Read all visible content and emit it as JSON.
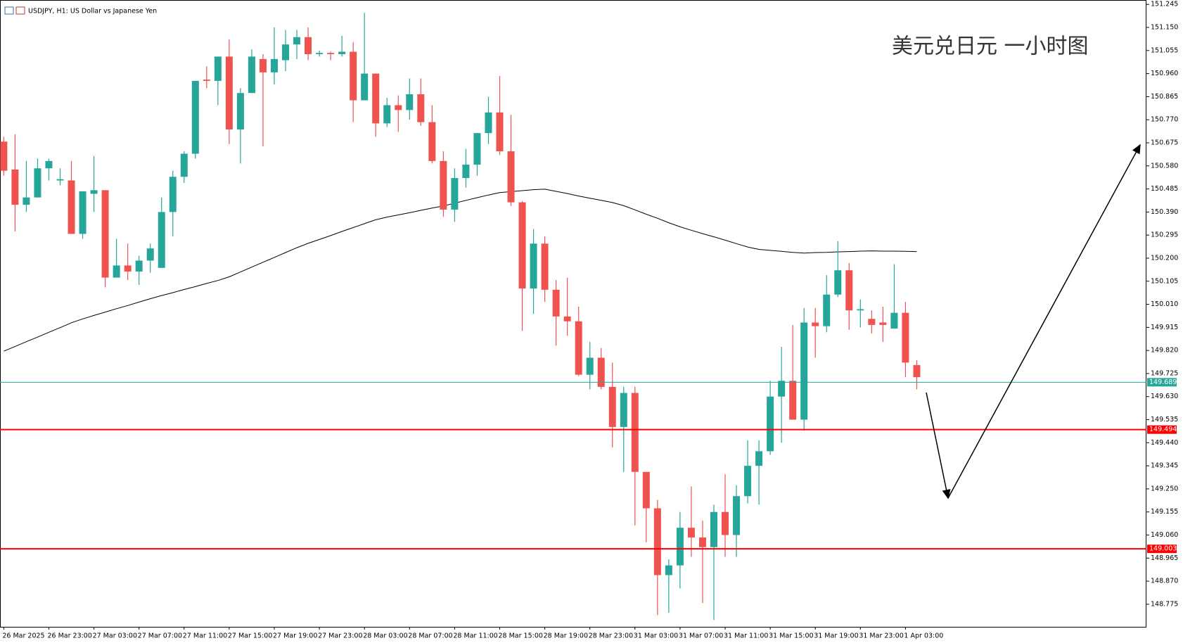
{
  "chart_data": {
    "type": "candlestick",
    "title": "USDJPY, H1:  US Dollar vs Japanese Yen",
    "annotation": "美元兑日元 一小时图",
    "categories": [
      "26 Mar 2025",
      null,
      null,
      null,
      "26 Mar 23:00",
      null,
      null,
      null,
      "27 Mar 03:00",
      null,
      null,
      null,
      "27 Mar 07:00",
      null,
      null,
      null,
      "27 Mar 11:00",
      null,
      null,
      null,
      "27 Mar 15:00",
      null,
      null,
      null,
      "27 Mar 19:00",
      null,
      null,
      null,
      "27 Mar 23:00",
      null,
      null,
      null,
      "28 Mar 03:00",
      null,
      null,
      null,
      "28 Mar 07:00",
      null,
      null,
      null,
      "28 Mar 11:00",
      null,
      null,
      null,
      "28 Mar 15:00",
      null,
      null,
      null,
      "28 Mar 19:00",
      null,
      null,
      null,
      "28 Mar 23:00",
      null,
      null,
      null,
      "31 Mar 03:00",
      null,
      null,
      null,
      "31 Mar 07:00",
      null,
      null,
      null,
      "31 Mar 11:00",
      null,
      null,
      null,
      "31 Mar 15:00",
      null,
      null,
      null,
      "31 Mar 19:00",
      null,
      null,
      null,
      "31 Mar 23:00",
      null,
      null,
      null,
      "1 Apr 03:00",
      null
    ],
    "open": [
      150.68,
      150.565,
      150.42,
      150.45,
      150.57,
      150.52,
      150.52,
      150.3,
      150.465,
      150.48,
      150.12,
      150.17,
      150.145,
      150.19,
      150.16,
      150.39,
      150.535,
      150.63,
      150.935,
      150.93,
      151.03,
      150.73,
      150.88,
      151.02,
      150.965,
      151.015,
      151.08,
      151.11,
      151.04,
      151.045,
      151.04,
      151.05,
      150.85,
      150.96,
      150.755,
      150.83,
      150.81,
      150.875,
      150.76,
      150.6,
      150.4,
      150.53,
      150.585,
      150.715,
      150.8,
      150.64,
      150.43,
      150.075,
      150.26,
      150.07,
      149.96,
      149.94,
      149.72,
      149.79,
      149.67,
      149.505,
      149.645,
      149.32,
      149.17,
      148.895,
      148.935,
      149.09,
      149.05,
      149.01,
      149.155,
      149.06,
      149.22,
      149.345,
      149.405,
      149.63,
      149.695,
      149.535,
      149.935,
      149.92,
      150.05,
      150.15,
      149.985,
      149.95,
      149.935,
      149.91,
      149.975,
      149.76
    ],
    "high": [
      150.7,
      150.71,
      150.6,
      150.61,
      150.61,
      150.57,
      150.6,
      150.475,
      150.62,
      150.48,
      150.28,
      150.26,
      150.21,
      150.26,
      150.45,
      150.56,
      150.64,
      150.93,
      150.99,
      151.03,
      151.1,
      150.9,
      151.06,
      151.04,
      151.15,
      151.14,
      151.14,
      151.15,
      151.055,
      151.05,
      151.115,
      151.09,
      151.21,
      150.96,
      150.86,
      150.87,
      150.94,
      150.94,
      150.83,
      150.64,
      150.57,
      150.65,
      150.715,
      150.865,
      150.95,
      150.79,
      150.435,
      150.32,
      150.29,
      150.11,
      150.12,
      150.0,
      149.855,
      149.83,
      149.77,
      149.67,
      149.67,
      149.32,
      149.205,
      148.96,
      149.155,
      149.26,
      149.12,
      149.185,
      149.31,
      149.265,
      149.45,
      149.45,
      149.695,
      149.835,
      149.925,
      149.995,
      149.995,
      150.13,
      150.27,
      150.18,
      150.03,
      149.985,
      150.0,
      150.175,
      150.02,
      149.78
    ],
    "low": [
      150.54,
      150.31,
      150.39,
      150.45,
      150.52,
      150.5,
      150.3,
      150.28,
      150.39,
      150.08,
      150.12,
      150.11,
      150.09,
      150.14,
      150.16,
      150.29,
      150.51,
      150.61,
      150.9,
      150.83,
      150.67,
      150.59,
      150.88,
      150.66,
      150.915,
      150.97,
      151.02,
      151.015,
      151.03,
      151.015,
      151.03,
      150.76,
      150.85,
      150.7,
      150.74,
      150.72,
      150.77,
      150.745,
      150.59,
      150.37,
      150.35,
      150.49,
      150.54,
      150.67,
      150.625,
      150.415,
      149.9,
      149.97,
      150.02,
      149.84,
      149.88,
      149.715,
      149.66,
      149.66,
      149.42,
      149.32,
      149.1,
      149.03,
      148.73,
      148.74,
      148.84,
      148.97,
      148.78,
      148.71,
      148.97,
      148.97,
      149.19,
      149.185,
      149.39,
      149.44,
      149.535,
      149.49,
      149.79,
      149.895,
      150.04,
      149.905,
      149.915,
      149.89,
      149.855,
      149.91,
      149.71,
      149.66
    ],
    "close": [
      150.56,
      150.42,
      150.45,
      150.57,
      150.6,
      150.525,
      150.3,
      150.475,
      150.48,
      150.12,
      150.17,
      150.145,
      150.19,
      150.24,
      150.39,
      150.535,
      150.63,
      150.93,
      150.93,
      151.03,
      150.73,
      150.88,
      151.03,
      150.965,
      151.02,
      151.08,
      151.11,
      151.04,
      151.045,
      151.04,
      151.05,
      150.85,
      150.96,
      150.755,
      150.83,
      150.81,
      150.875,
      150.76,
      150.6,
      150.4,
      150.53,
      150.585,
      150.715,
      150.8,
      150.64,
      150.43,
      150.075,
      150.26,
      150.07,
      149.96,
      149.94,
      149.72,
      149.79,
      149.67,
      149.505,
      149.645,
      149.32,
      149.17,
      148.895,
      148.935,
      149.09,
      149.05,
      149.01,
      149.155,
      149.06,
      149.22,
      149.345,
      149.405,
      149.63,
      149.695,
      149.535,
      149.935,
      149.92,
      150.05,
      150.15,
      149.985,
      149.99,
      149.925,
      149.925,
      149.975,
      149.77,
      149.71
    ],
    "up_color": "#26a69a",
    "down_color": "#ef5350",
    "moving_average": {
      "color": "#000000",
      "values": [
        149.817,
        149.836,
        149.856,
        149.875,
        149.895,
        149.914,
        149.934,
        149.95,
        149.964,
        149.978,
        149.992,
        150.005,
        150.019,
        150.033,
        150.046,
        150.058,
        150.071,
        150.083,
        150.096,
        150.108,
        150.123,
        150.143,
        150.163,
        150.183,
        150.203,
        150.223,
        150.243,
        150.261,
        150.277,
        150.293,
        150.31,
        150.326,
        150.342,
        150.358,
        150.369,
        150.378,
        150.387,
        150.397,
        150.406,
        150.415,
        150.426,
        150.438,
        150.449,
        150.46,
        150.47,
        150.474,
        150.478,
        150.482,
        150.484,
        150.475,
        150.466,
        150.456,
        150.447,
        150.438,
        150.429,
        150.416,
        150.399,
        150.381,
        150.364,
        150.346,
        150.329,
        150.315,
        150.301,
        150.288,
        150.274,
        150.26,
        150.246,
        150.236,
        150.232,
        150.228,
        150.224,
        150.221,
        150.223,
        150.224,
        150.226,
        150.227,
        150.229,
        150.23,
        150.229,
        150.229,
        150.228,
        150.227
      ]
    },
    "price_lines": [
      {
        "value": 149.689,
        "color": "#26a69a"
      },
      {
        "value": 149.494,
        "color": "#ff0000"
      },
      {
        "value": 149.003,
        "color": "#ff0000"
      }
    ],
    "ylim": [
      148.682,
      151.263
    ],
    "yticks": [
      {
        "value": 151.245,
        "label": "151.245"
      },
      {
        "value": 151.15,
        "label": "151.150"
      },
      {
        "value": 151.055,
        "label": "151.055"
      },
      {
        "value": 150.96,
        "label": "150.960"
      },
      {
        "value": 150.865,
        "label": "150.865"
      },
      {
        "value": 150.77,
        "label": "150.770"
      },
      {
        "value": 150.675,
        "label": "150.675"
      },
      {
        "value": 150.58,
        "label": "150.580"
      },
      {
        "value": 150.485,
        "label": "150.485"
      },
      {
        "value": 150.39,
        "label": "150.390"
      },
      {
        "value": 150.295,
        "label": "150.295"
      },
      {
        "value": 150.2,
        "label": "150.200"
      },
      {
        "value": 150.105,
        "label": "150.105"
      },
      {
        "value": 150.01,
        "label": "150.010"
      },
      {
        "value": 149.915,
        "label": "149.915"
      },
      {
        "value": 149.82,
        "label": "149.820"
      },
      {
        "value": 149.725,
        "label": "149.725"
      },
      {
        "value": 149.63,
        "label": "149.630"
      },
      {
        "value": 149.535,
        "label": "149.535"
      },
      {
        "value": 149.44,
        "label": "149.440"
      },
      {
        "value": 149.345,
        "label": "149.345"
      },
      {
        "value": 149.25,
        "label": "149.250"
      },
      {
        "value": 149.155,
        "label": "149.155"
      },
      {
        "value": 149.06,
        "label": "149.060"
      },
      {
        "value": 148.965,
        "label": "148.965"
      },
      {
        "value": 148.87,
        "label": "148.870"
      },
      {
        "value": 148.775,
        "label": "148.775"
      }
    ]
  }
}
